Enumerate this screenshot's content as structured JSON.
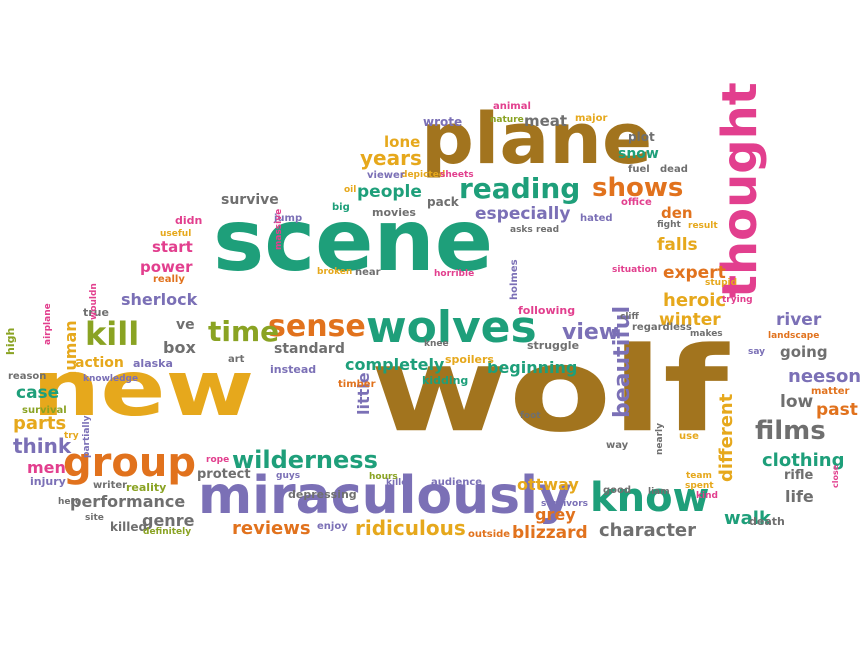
{
  "palette": {
    "green": "#1e9f7a",
    "gold": "#e6a81c",
    "brown": "#a2741e",
    "purple": "#7b70b6",
    "orange": "#e1721d",
    "grey": "#6f6f6f",
    "pink": "#e23f8e",
    "olive": "#8aa323"
  },
  "words": [
    {
      "text": "scene",
      "color": "green"
    },
    {
      "text": "wolf",
      "color": "brown"
    },
    {
      "text": "new",
      "color": "gold"
    },
    {
      "text": "plane",
      "color": "brown"
    },
    {
      "text": "miraculously",
      "color": "purple"
    },
    {
      "text": "thought",
      "color": "pink"
    },
    {
      "text": "wolves",
      "color": "green"
    },
    {
      "text": "group",
      "color": "orange"
    },
    {
      "text": "know",
      "color": "green"
    },
    {
      "text": "sense",
      "color": "orange"
    },
    {
      "text": "time",
      "color": "olive"
    },
    {
      "text": "kill",
      "color": "olive"
    },
    {
      "text": "reading",
      "color": "green"
    },
    {
      "text": "shows",
      "color": "orange"
    },
    {
      "text": "films",
      "color": "grey"
    },
    {
      "text": "wilderness",
      "color": "green"
    },
    {
      "text": "beautiful",
      "color": "purple"
    },
    {
      "text": "different",
      "color": "gold"
    },
    {
      "text": "view",
      "color": "purple"
    },
    {
      "text": "years",
      "color": "gold"
    },
    {
      "text": "people",
      "color": "green"
    },
    {
      "text": "lone",
      "color": "gold"
    },
    {
      "text": "especially",
      "color": "purple"
    },
    {
      "text": "survive",
      "color": "grey"
    },
    {
      "text": "den",
      "color": "orange"
    },
    {
      "text": "falls",
      "color": "gold"
    },
    {
      "text": "expert",
      "color": "orange"
    },
    {
      "text": "heroic",
      "color": "gold"
    },
    {
      "text": "winter",
      "color": "gold"
    },
    {
      "text": "river",
      "color": "purple"
    },
    {
      "text": "going",
      "color": "grey"
    },
    {
      "text": "neeson",
      "color": "purple"
    },
    {
      "text": "low",
      "color": "grey"
    },
    {
      "text": "past",
      "color": "orange"
    },
    {
      "text": "clothing",
      "color": "green"
    },
    {
      "text": "life",
      "color": "grey"
    },
    {
      "text": "walk",
      "color": "green"
    },
    {
      "text": "character",
      "color": "grey"
    },
    {
      "text": "blizzard",
      "color": "orange"
    },
    {
      "text": "ridiculous",
      "color": "gold"
    },
    {
      "text": "grey",
      "color": "orange"
    },
    {
      "text": "ottway",
      "color": "gold"
    },
    {
      "text": "reviews",
      "color": "orange"
    },
    {
      "text": "genre",
      "color": "grey"
    },
    {
      "text": "performance",
      "color": "grey"
    },
    {
      "text": "parts",
      "color": "gold"
    },
    {
      "text": "think",
      "color": "purple"
    },
    {
      "text": "men",
      "color": "pink"
    },
    {
      "text": "case",
      "color": "green"
    },
    {
      "text": "human",
      "color": "gold"
    },
    {
      "text": "action",
      "color": "gold"
    },
    {
      "text": "box",
      "color": "grey"
    },
    {
      "text": "ve",
      "color": "grey"
    },
    {
      "text": "sherlock",
      "color": "purple"
    },
    {
      "text": "start",
      "color": "pink"
    },
    {
      "text": "power",
      "color": "pink"
    },
    {
      "text": "completely",
      "color": "green"
    },
    {
      "text": "beginning",
      "color": "green"
    },
    {
      "text": "standard",
      "color": "grey"
    },
    {
      "text": "little",
      "color": "purple"
    },
    {
      "text": "meat",
      "color": "grey"
    },
    {
      "text": "snow",
      "color": "green"
    },
    {
      "text": "plot",
      "color": "grey"
    },
    {
      "text": "protect",
      "color": "grey"
    },
    {
      "text": "killed",
      "color": "grey"
    },
    {
      "text": "alaska",
      "color": "purple"
    },
    {
      "text": "instead",
      "color": "purple"
    },
    {
      "text": "spoilers",
      "color": "gold"
    },
    {
      "text": "struggle",
      "color": "grey"
    },
    {
      "text": "following",
      "color": "pink"
    },
    {
      "text": "holmes",
      "color": "purple"
    },
    {
      "text": "fuel",
      "color": "grey"
    },
    {
      "text": "dead",
      "color": "grey"
    },
    {
      "text": "major",
      "color": "gold"
    },
    {
      "text": "animal",
      "color": "pink"
    },
    {
      "text": "nature",
      "color": "olive"
    },
    {
      "text": "wrote",
      "color": "purple"
    },
    {
      "text": "depicted",
      "color": "gold"
    },
    {
      "text": "viewer",
      "color": "purple"
    },
    {
      "text": "sheets",
      "color": "pink"
    },
    {
      "text": "pack",
      "color": "grey"
    },
    {
      "text": "movies",
      "color": "grey"
    },
    {
      "text": "big",
      "color": "green"
    },
    {
      "text": "oil",
      "color": "gold"
    },
    {
      "text": "jump",
      "color": "purple"
    },
    {
      "text": "massive",
      "color": "pink"
    },
    {
      "text": "didn",
      "color": "pink"
    },
    {
      "text": "useful",
      "color": "gold"
    },
    {
      "text": "really",
      "color": "orange"
    },
    {
      "text": "true",
      "color": "grey"
    },
    {
      "text": "wouldn",
      "color": "pink"
    },
    {
      "text": "airplane",
      "color": "pink"
    },
    {
      "text": "high",
      "color": "olive"
    },
    {
      "text": "reason",
      "color": "grey"
    },
    {
      "text": "survival",
      "color": "olive"
    },
    {
      "text": "knowledge",
      "color": "purple"
    },
    {
      "text": "art",
      "color": "grey"
    },
    {
      "text": "timber",
      "color": "orange"
    },
    {
      "text": "kidding",
      "color": "green"
    },
    {
      "text": "broken",
      "color": "gold"
    },
    {
      "text": "near",
      "color": "grey"
    },
    {
      "text": "horrible",
      "color": "pink"
    },
    {
      "text": "asks",
      "color": "grey"
    },
    {
      "text": "read",
      "color": "grey"
    },
    {
      "text": "hated",
      "color": "purple"
    },
    {
      "text": "office",
      "color": "pink"
    },
    {
      "text": "fight",
      "color": "grey"
    },
    {
      "text": "result",
      "color": "gold"
    },
    {
      "text": "situation",
      "color": "pink"
    },
    {
      "text": "stupid",
      "color": "gold"
    },
    {
      "text": "trying",
      "color": "pink"
    },
    {
      "text": "cliff",
      "color": "grey"
    },
    {
      "text": "regardless",
      "color": "grey"
    },
    {
      "text": "makes",
      "color": "grey"
    },
    {
      "text": "landscape",
      "color": "orange"
    },
    {
      "text": "say",
      "color": "purple"
    },
    {
      "text": "matter",
      "color": "orange"
    },
    {
      "text": "close",
      "color": "pink"
    },
    {
      "text": "kind",
      "color": "pink"
    },
    {
      "text": "use",
      "color": "gold"
    },
    {
      "text": "nearly",
      "color": "grey"
    },
    {
      "text": "team",
      "color": "gold"
    },
    {
      "text": "liam",
      "color": "grey"
    },
    {
      "text": "spent",
      "color": "gold"
    },
    {
      "text": "good",
      "color": "grey"
    },
    {
      "text": "way",
      "color": "grey"
    },
    {
      "text": "foot",
      "color": "grey"
    },
    {
      "text": "audience",
      "color": "purple"
    },
    {
      "text": "killer",
      "color": "purple"
    },
    {
      "text": "survivors",
      "color": "purple"
    },
    {
      "text": "outside",
      "color": "orange"
    },
    {
      "text": "death",
      "color": "grey"
    },
    {
      "text": "rifle",
      "color": "grey"
    },
    {
      "text": "hours",
      "color": "olive"
    },
    {
      "text": "guys",
      "color": "purple"
    },
    {
      "text": "depressing",
      "color": "grey"
    },
    {
      "text": "enjoy",
      "color": "purple"
    },
    {
      "text": "rope",
      "color": "pink"
    },
    {
      "text": "reality",
      "color": "olive"
    },
    {
      "text": "writer",
      "color": "grey"
    },
    {
      "text": "injury",
      "color": "purple"
    },
    {
      "text": "hero",
      "color": "grey"
    },
    {
      "text": "site",
      "color": "grey"
    },
    {
      "text": "definitely",
      "color": "olive"
    },
    {
      "text": "partially",
      "color": "purple"
    },
    {
      "text": "try",
      "color": "gold"
    },
    {
      "text": "knee",
      "color": "grey"
    }
  ]
}
